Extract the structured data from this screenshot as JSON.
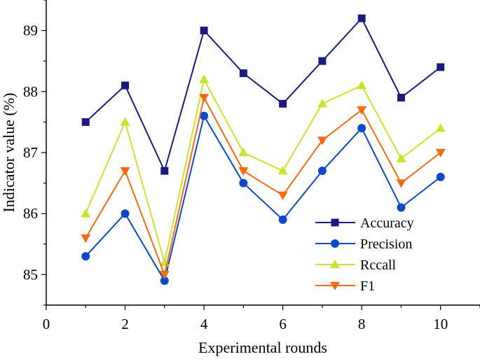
{
  "chart_data": {
    "type": "line",
    "title": "",
    "xlabel": "Experimental rounds",
    "ylabel": "Indicator value (%)",
    "xlim": [
      0,
      11
    ],
    "ylim": [
      84.5,
      89.5
    ],
    "xticks": [
      0,
      2,
      4,
      6,
      8,
      10
    ],
    "yticks": [
      85,
      86,
      87,
      88,
      89
    ],
    "x": [
      1,
      2,
      3,
      4,
      5,
      6,
      7,
      8,
      9,
      10
    ],
    "legend_position": "bottom-right",
    "series": [
      {
        "name": "Accuracy",
        "color": "#1a1a80",
        "marker": "square",
        "values": [
          87.5,
          88.1,
          86.7,
          89.0,
          88.3,
          87.8,
          88.5,
          89.2,
          87.9,
          88.4
        ]
      },
      {
        "name": "Precision",
        "color": "#0c49c9",
        "marker": "circle",
        "values": [
          85.3,
          86.0,
          84.9,
          87.6,
          86.5,
          85.9,
          86.7,
          87.4,
          86.1,
          86.6
        ]
      },
      {
        "name": "Rccall",
        "color": "#c4e62e",
        "marker": "triangle-up",
        "values": [
          86.0,
          87.5,
          85.2,
          88.2,
          87.0,
          86.7,
          87.8,
          88.1,
          86.9,
          87.4
        ]
      },
      {
        "name": "F1",
        "color": "#f66a10",
        "marker": "triangle-down",
        "values": [
          85.6,
          86.7,
          85.0,
          87.9,
          86.7,
          86.3,
          87.2,
          87.7,
          86.5,
          87.0
        ]
      }
    ]
  }
}
